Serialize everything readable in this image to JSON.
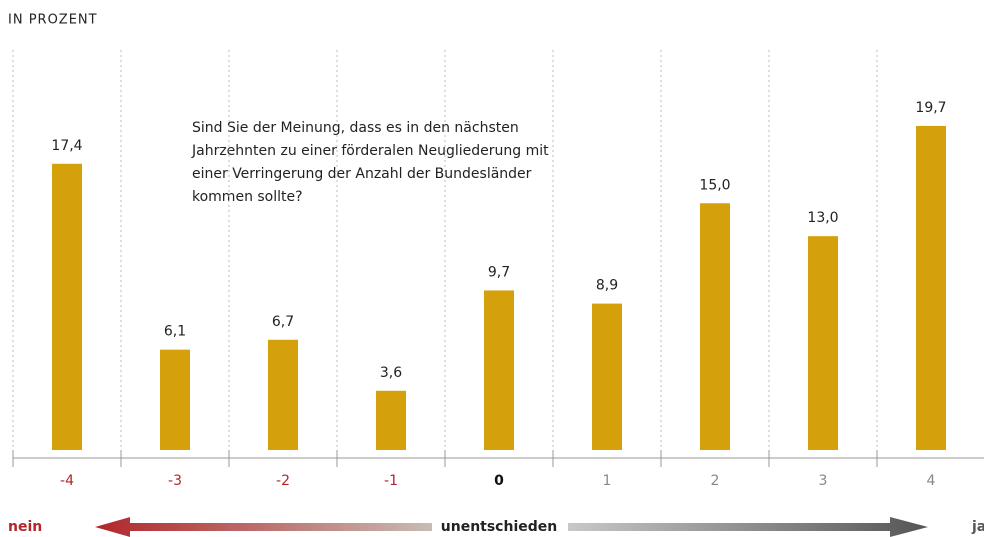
{
  "chart_data": {
    "type": "bar",
    "title": "IN PROZENT",
    "annotation": [
      "Sind Sie der Meinung, dass es in den nächsten",
      "Jahrzehnten zu einer förderalen Neugliederung mit",
      "einer Verringerung der Anzahl der Bundesländer",
      "kommen sollte?"
    ],
    "categories": [
      "-4",
      "-3",
      "-2",
      "-1",
      "0",
      "1",
      "2",
      "3",
      "4"
    ],
    "category_colors": [
      "#b0262a",
      "#b0262a",
      "#b0262a",
      "#b0262a",
      "#111111",
      "#888888",
      "#888888",
      "#888888",
      "#888888"
    ],
    "values": [
      17.4,
      6.1,
      6.7,
      3.6,
      9.7,
      8.9,
      15.0,
      13.0,
      19.7
    ],
    "value_labels": [
      "17,4",
      "6,1",
      "6,7",
      "3,6",
      "9,7",
      "8,9",
      "15,0",
      "13,0",
      "19,7"
    ],
    "color": "#d4a00c",
    "ylim": [
      0,
      20
    ],
    "scale_left": "nein",
    "scale_middle": "unentschieden",
    "scale_right": "ja"
  }
}
